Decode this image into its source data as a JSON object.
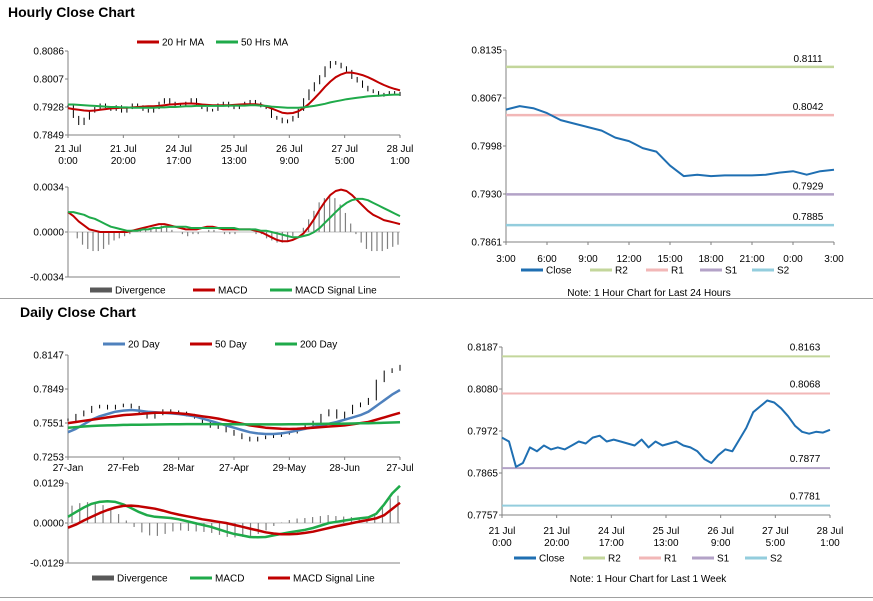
{
  "sections": {
    "hourly_title": "Hourly Close Chart",
    "daily_title": "Daily Close Chart"
  },
  "colors": {
    "red": "#c00000",
    "green": "#1faa4a",
    "blue": "#4f81bd",
    "close_blue": "#1f6fb2",
    "r2": "#c3d69b",
    "r1": "#f2b7b7",
    "s1": "#b3a2c7",
    "s2": "#93cddd",
    "gray": "#595959"
  },
  "chart_data": [
    {
      "id": "hourly_price",
      "type": "line",
      "legend": [
        "20 Hr MA",
        "50 Hrs MA"
      ],
      "y_ticks": [
        "0.8086",
        "0.8007",
        "0.7928",
        "0.7849"
      ],
      "ylim": [
        0.7849,
        0.8086
      ],
      "x_ticks": [
        [
          "21 Jul",
          "0:00"
        ],
        [
          "21 Jul",
          "20:00"
        ],
        [
          "24 Jul",
          "17:00"
        ],
        [
          "25 Jul",
          "13:00"
        ],
        [
          "26 Jul",
          "9:00"
        ],
        [
          "27 Jul",
          "5:00"
        ],
        [
          "28 Jul",
          "1:00"
        ]
      ],
      "close": [
        0.793,
        0.79,
        0.788,
        0.7895,
        0.7915,
        0.7925,
        0.7935,
        0.7928,
        0.792,
        0.793,
        0.7915,
        0.7925,
        0.7935,
        0.793,
        0.792,
        0.7915,
        0.7925,
        0.794,
        0.795,
        0.794,
        0.793,
        0.7935,
        0.794,
        0.795,
        0.7935,
        0.7925,
        0.7918,
        0.792,
        0.7935,
        0.794,
        0.793,
        0.7925,
        0.7935,
        0.794,
        0.7945,
        0.7938,
        0.793,
        0.7925,
        0.79,
        0.7895,
        0.7885,
        0.789,
        0.79,
        0.792,
        0.795,
        0.7975,
        0.7995,
        0.8015,
        0.804,
        0.8055,
        0.805,
        0.804,
        0.803,
        0.801,
        0.8,
        0.7985,
        0.7975,
        0.797,
        0.796,
        0.7965,
        0.797,
        0.7968,
        0.7962
      ],
      "ma20": [
        0.7925,
        0.7922,
        0.792,
        0.7918,
        0.7917,
        0.7918,
        0.792,
        0.7922,
        0.7924,
        0.7925,
        0.7926,
        0.7926,
        0.7927,
        0.7928,
        0.7929,
        0.793,
        0.793,
        0.7931,
        0.7933,
        0.7935,
        0.7936,
        0.7937,
        0.7938,
        0.7938,
        0.7937,
        0.7935,
        0.7934,
        0.7933,
        0.7933,
        0.7933,
        0.7933,
        0.7934,
        0.7935,
        0.7936,
        0.7936,
        0.7936,
        0.7934,
        0.793,
        0.7924,
        0.7918,
        0.7912,
        0.791,
        0.7911,
        0.7916,
        0.7925,
        0.7937,
        0.7952,
        0.7968,
        0.7985,
        0.8,
        0.8012,
        0.802,
        0.8025,
        0.8025,
        0.8022,
        0.8018,
        0.8012,
        0.8005,
        0.7997,
        0.799,
        0.7984,
        0.7979,
        0.7975
      ],
      "ma50": [
        0.7935,
        0.7935,
        0.7934,
        0.7933,
        0.7932,
        0.7931,
        0.793,
        0.7929,
        0.7928,
        0.7928,
        0.7927,
        0.7927,
        0.7926,
        0.7926,
        0.7926,
        0.7926,
        0.7926,
        0.7927,
        0.7927,
        0.7928,
        0.7928,
        0.7929,
        0.793,
        0.793,
        0.7931,
        0.7931,
        0.7931,
        0.7931,
        0.7931,
        0.7931,
        0.7932,
        0.7932,
        0.7932,
        0.7932,
        0.7933,
        0.7933,
        0.7932,
        0.7931,
        0.7929,
        0.7928,
        0.7927,
        0.7926,
        0.7926,
        0.7926,
        0.7927,
        0.7929,
        0.7931,
        0.7934,
        0.7937,
        0.7941,
        0.7944,
        0.7947,
        0.795,
        0.7952,
        0.7954,
        0.7956,
        0.7958,
        0.7959,
        0.796,
        0.7961,
        0.7962,
        0.7963,
        0.7963
      ]
    },
    {
      "id": "hourly_macd",
      "type": "line",
      "legend": [
        "Divergence",
        "MACD",
        "MACD Signal Line"
      ],
      "y_ticks": [
        "0.0034",
        "0.0000",
        "-0.0034"
      ],
      "ylim": [
        -0.0034,
        0.0034
      ],
      "macd": [
        0.0015,
        0.0012,
        0.0008,
        0.0005,
        0.0002,
        0.0001,
        0.0,
        0.0,
        0.0,
        0.0,
        0.0,
        0.0,
        0.0001,
        0.0002,
        0.0003,
        0.0004,
        0.0005,
        0.0006,
        0.0006,
        0.0005,
        0.0004,
        0.0003,
        0.0002,
        0.0002,
        0.0002,
        0.0003,
        0.0004,
        0.0004,
        0.0003,
        0.0002,
        0.0002,
        0.0002,
        0.0002,
        0.0002,
        0.0002,
        0.0001,
        0.0,
        -0.0002,
        -0.0004,
        -0.0006,
        -0.0007,
        -0.0007,
        -0.0006,
        -0.0004,
        -0.0001,
        0.0004,
        0.001,
        0.0017,
        0.0023,
        0.0028,
        0.0031,
        0.0032,
        0.0031,
        0.0028,
        0.0024,
        0.002,
        0.0016,
        0.0013,
        0.0011,
        0.0009,
        0.0008,
        0.0007,
        0.0006
      ],
      "signal": [
        0.0015,
        0.0015,
        0.0014,
        0.0013,
        0.0011,
        0.001,
        0.0008,
        0.0006,
        0.0004,
        0.0003,
        0.0002,
        0.0001,
        0.0001,
        0.0001,
        0.0002,
        0.0002,
        0.0003,
        0.0003,
        0.0004,
        0.0004,
        0.0004,
        0.0004,
        0.0004,
        0.0003,
        0.0003,
        0.0003,
        0.0003,
        0.0003,
        0.0003,
        0.0003,
        0.0003,
        0.0003,
        0.0002,
        0.0002,
        0.0002,
        0.0002,
        0.0001,
        0.0001,
        0.0,
        -0.0001,
        -0.0002,
        -0.0003,
        -0.0004,
        -0.0004,
        -0.0003,
        -0.0002,
        0.0,
        0.0003,
        0.0007,
        0.0011,
        0.0015,
        0.0019,
        0.0022,
        0.0024,
        0.0025,
        0.0025,
        0.0024,
        0.0022,
        0.002,
        0.0018,
        0.0016,
        0.0014,
        0.0012
      ]
    },
    {
      "id": "hourly_levels",
      "type": "line",
      "y_ticks": [
        "0.8135",
        "0.8067",
        "0.7998",
        "0.7930",
        "0.7861"
      ],
      "ylim": [
        0.7861,
        0.8135
      ],
      "x_ticks": [
        "3:00",
        "6:00",
        "9:00",
        "12:00",
        "15:00",
        "18:00",
        "21:00",
        "0:00",
        "3:00"
      ],
      "close": [
        0.805,
        0.8055,
        0.8052,
        0.8045,
        0.8035,
        0.803,
        0.8025,
        0.802,
        0.801,
        0.8005,
        0.7995,
        0.799,
        0.797,
        0.7955,
        0.7957,
        0.7955,
        0.7956,
        0.7956,
        0.7956,
        0.7957,
        0.796,
        0.7962,
        0.7957,
        0.7962,
        0.7964
      ],
      "levels": [
        {
          "name": "R2",
          "value": 0.8111,
          "label": "0.8111"
        },
        {
          "name": "R1",
          "value": 0.8042,
          "label": "0.8042"
        },
        {
          "name": "S1",
          "value": 0.7929,
          "label": "0.7929"
        },
        {
          "name": "S2",
          "value": 0.7885,
          "label": "0.7885"
        }
      ],
      "legend": [
        "Close",
        "R2",
        "R1",
        "S1",
        "S2"
      ],
      "note": "Note: 1 Hour Chart for Last 24 Hours"
    },
    {
      "id": "daily_price",
      "type": "line",
      "legend": [
        "20 Day",
        "50 Day",
        "200 Day"
      ],
      "y_ticks": [
        "0.8147",
        "0.7849",
        "0.7551",
        "0.7253"
      ],
      "ylim": [
        0.7253,
        0.8147
      ],
      "x_ticks": [
        "27-Jan",
        "27-Feb",
        "28-Mar",
        "27-Apr",
        "29-May",
        "28-Jun",
        "27-Jul"
      ],
      "close": [
        0.758,
        0.762,
        0.765,
        0.769,
        0.77,
        0.768,
        0.77,
        0.771,
        0.769,
        0.765,
        0.76,
        0.763,
        0.766,
        0.765,
        0.764,
        0.762,
        0.76,
        0.756,
        0.752,
        0.751,
        0.748,
        0.745,
        0.742,
        0.74,
        0.742,
        0.743,
        0.744,
        0.746,
        0.747,
        0.75,
        0.752,
        0.756,
        0.762,
        0.766,
        0.76,
        0.764,
        0.77,
        0.772,
        0.776,
        0.792,
        0.8,
        0.802,
        0.805
      ],
      "ma20": [
        0.747,
        0.75,
        0.754,
        0.758,
        0.761,
        0.763,
        0.765,
        0.766,
        0.7665,
        0.766,
        0.765,
        0.7645,
        0.764,
        0.7635,
        0.763,
        0.762,
        0.761,
        0.759,
        0.757,
        0.755,
        0.753,
        0.751,
        0.749,
        0.747,
        0.746,
        0.7455,
        0.7455,
        0.746,
        0.747,
        0.7485,
        0.75,
        0.7515,
        0.753,
        0.7545,
        0.756,
        0.758,
        0.76,
        0.762,
        0.765,
        0.77,
        0.775,
        0.78,
        0.784
      ],
      "ma50": [
        0.755,
        0.756,
        0.757,
        0.758,
        0.759,
        0.76,
        0.761,
        0.762,
        0.7625,
        0.763,
        0.7635,
        0.764,
        0.764,
        0.764,
        0.7635,
        0.763,
        0.762,
        0.761,
        0.76,
        0.759,
        0.7575,
        0.756,
        0.7545,
        0.753,
        0.752,
        0.751,
        0.7505,
        0.75,
        0.7498,
        0.75,
        0.7505,
        0.751,
        0.7515,
        0.752,
        0.7525,
        0.753,
        0.754,
        0.755,
        0.756,
        0.758,
        0.76,
        0.762,
        0.764
      ],
      "ma200": [
        0.751,
        0.7515,
        0.752,
        0.7525,
        0.7528,
        0.753,
        0.7532,
        0.7534,
        0.7535,
        0.7536,
        0.7537,
        0.7538,
        0.7539,
        0.754,
        0.754,
        0.7541,
        0.7541,
        0.7541,
        0.7541,
        0.754,
        0.754,
        0.754,
        0.7539,
        0.7539,
        0.7539,
        0.7539,
        0.7539,
        0.7539,
        0.754,
        0.754,
        0.7541,
        0.7542,
        0.7543,
        0.7544,
        0.7545,
        0.7546,
        0.7547,
        0.7548,
        0.7549,
        0.7551,
        0.7553,
        0.7555,
        0.7557
      ]
    },
    {
      "id": "daily_macd",
      "type": "line",
      "legend": [
        "Divergence",
        "MACD",
        "MACD Signal Line"
      ],
      "y_ticks": [
        "0.0129",
        "0.0000",
        "-0.0129"
      ],
      "ylim": [
        -0.0129,
        0.0129
      ],
      "macd": [
        0.002,
        0.0035,
        0.005,
        0.0062,
        0.0068,
        0.007,
        0.0068,
        0.006,
        0.0048,
        0.0035,
        0.0025,
        0.002,
        0.0018,
        0.0016,
        0.0012,
        0.0006,
        0.0,
        -0.0006,
        -0.0012,
        -0.002,
        -0.0028,
        -0.0035,
        -0.004,
        -0.0045,
        -0.0046,
        -0.0045,
        -0.004,
        -0.0035,
        -0.003,
        -0.0026,
        -0.0022,
        -0.0016,
        -0.0008,
        0.0,
        0.0004,
        0.0008,
        0.0012,
        0.0015,
        0.0018,
        0.003,
        0.006,
        0.0095,
        0.012
      ],
      "signal": [
        -0.0015,
        -0.0005,
        0.0008,
        0.002,
        0.0032,
        0.0042,
        0.005,
        0.0055,
        0.0056,
        0.0054,
        0.005,
        0.0046,
        0.004,
        0.0033,
        0.0027,
        0.0022,
        0.0017,
        0.0012,
        0.0008,
        0.0004,
        0.0,
        -0.0006,
        -0.0012,
        -0.0018,
        -0.0024,
        -0.003,
        -0.0034,
        -0.0036,
        -0.0036,
        -0.0035,
        -0.0032,
        -0.0028,
        -0.0022,
        -0.0016,
        -0.001,
        -0.0005,
        0.0,
        0.0005,
        0.001,
        0.0015,
        0.0025,
        0.0045,
        0.0065
      ]
    },
    {
      "id": "daily_levels",
      "type": "line",
      "y_ticks": [
        "0.8187",
        "0.8080",
        "0.7972",
        "0.7865",
        "0.7757"
      ],
      "ylim": [
        0.7757,
        0.8187
      ],
      "x_ticks": [
        [
          "21 Jul",
          "0:00"
        ],
        [
          "21 Jul",
          "20:00"
        ],
        [
          "24 Jul",
          "17:00"
        ],
        [
          "25 Jul",
          "13:00"
        ],
        [
          "26 Jul",
          "9:00"
        ],
        [
          "27 Jul",
          "5:00"
        ],
        [
          "28 Jul",
          "1:00"
        ]
      ],
      "close": [
        0.7955,
        0.7945,
        0.788,
        0.789,
        0.793,
        0.792,
        0.7935,
        0.7925,
        0.793,
        0.7925,
        0.7935,
        0.7945,
        0.794,
        0.7955,
        0.796,
        0.7945,
        0.795,
        0.7945,
        0.794,
        0.7935,
        0.795,
        0.793,
        0.7945,
        0.7935,
        0.794,
        0.7945,
        0.7935,
        0.793,
        0.792,
        0.79,
        0.789,
        0.791,
        0.7925,
        0.792,
        0.795,
        0.798,
        0.802,
        0.8035,
        0.805,
        0.8045,
        0.803,
        0.801,
        0.7985,
        0.797,
        0.7965,
        0.797,
        0.7968,
        0.7975
      ],
      "levels": [
        {
          "name": "R2",
          "value": 0.8163,
          "label": "0.8163"
        },
        {
          "name": "R1",
          "value": 0.8068,
          "label": "0.8068"
        },
        {
          "name": "S1",
          "value": 0.7877,
          "label": "0.7877"
        },
        {
          "name": "S2",
          "value": 0.7781,
          "label": "0.7781"
        }
      ],
      "legend": [
        "Close",
        "R2",
        "R1",
        "S1",
        "S2"
      ],
      "note": "Note: 1 Hour Chart for Last 1 Week"
    }
  ]
}
